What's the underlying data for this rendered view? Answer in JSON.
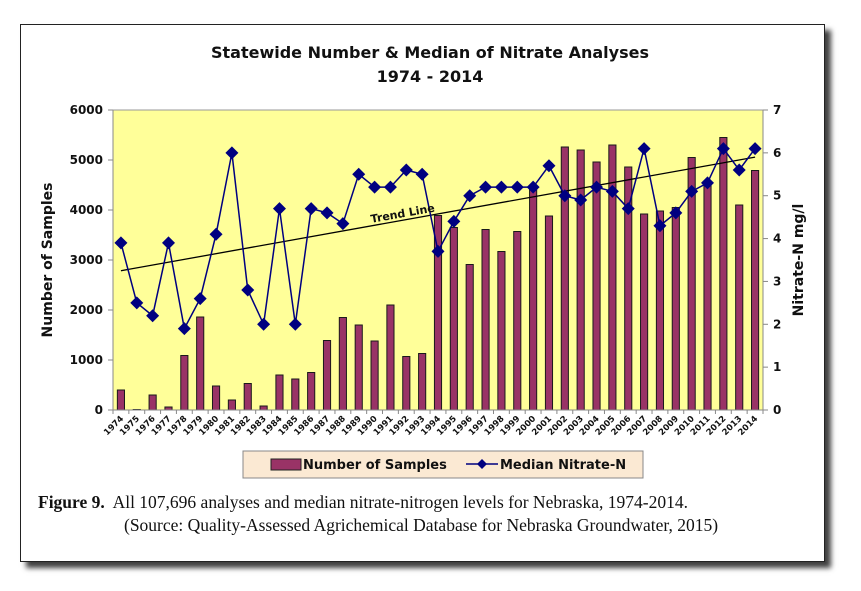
{
  "chart_data": {
    "type": "bar+line",
    "title": "Statewide Number & Median of Nitrate Analyses",
    "subtitle": "1974 - 2014",
    "categories": [
      "1974",
      "1975",
      "1976",
      "1977",
      "1978",
      "1979",
      "1980",
      "1981",
      "1982",
      "1983",
      "1984",
      "1985",
      "1986",
      "1987",
      "1988",
      "1989",
      "1990",
      "1991",
      "1992",
      "1993",
      "1994",
      "1995",
      "1996",
      "1997",
      "1998",
      "1999",
      "2000",
      "2001",
      "2002",
      "2003",
      "2004",
      "2005",
      "2006",
      "2007",
      "2008",
      "2009",
      "2010",
      "2011",
      "2012",
      "2013",
      "2014"
    ],
    "series": [
      {
        "name": "Number of Samples",
        "type": "bar",
        "axis": "left",
        "color": "#993366",
        "values": [
          400,
          10,
          300,
          60,
          1090,
          1860,
          480,
          200,
          530,
          80,
          700,
          620,
          750,
          1390,
          1850,
          1700,
          1380,
          2100,
          1070,
          1130,
          3890,
          3650,
          2910,
          3610,
          3170,
          3570,
          4450,
          3880,
          5260,
          5200,
          4960,
          5300,
          4860,
          3920,
          3980,
          4050,
          5050,
          4550,
          5450,
          4100,
          4790
        ]
      },
      {
        "name": "Median Nitrate-N",
        "type": "line",
        "axis": "right",
        "color": "#000080",
        "marker": "diamond",
        "values": [
          3.9,
          2.5,
          2.2,
          3.9,
          1.9,
          2.6,
          4.1,
          6.0,
          2.8,
          2.0,
          4.7,
          2.0,
          4.7,
          4.6,
          4.35,
          5.5,
          5.2,
          5.2,
          5.6,
          5.5,
          3.7,
          4.4,
          5.0,
          5.2,
          5.2,
          5.2,
          5.2,
          5.7,
          5.0,
          4.9,
          5.2,
          5.1,
          4.7,
          6.1,
          4.3,
          4.6,
          5.1,
          5.3,
          6.1,
          5.6,
          6.1
        ]
      },
      {
        "name": "Trend Line",
        "type": "line",
        "axis": "right",
        "color": "#000000",
        "x": [
          "1974",
          "2014"
        ],
        "values": [
          3.25,
          5.9
        ]
      }
    ],
    "annotations": [
      {
        "text": "Trend Line",
        "near": "1989-1993"
      }
    ],
    "ylabel": "Number of Samples",
    "ylim": [
      0,
      6000
    ],
    "yticks": [
      0,
      1000,
      2000,
      3000,
      4000,
      5000,
      6000
    ],
    "y2label": "Nitrate-N mg/l",
    "y2lim": [
      0,
      7
    ],
    "y2ticks": [
      0,
      1,
      2,
      3,
      4,
      5,
      6,
      7
    ],
    "xlabel": "",
    "grid": false,
    "plot_background": "#ffff99",
    "legend": {
      "placement": "bottom",
      "entries": [
        "Number of Samples",
        "Median Nitrate-N"
      ],
      "background": "#fff2cc"
    }
  },
  "caption": {
    "label": "Figure 9.",
    "text": "All 107,696 analyses and median nitrate-nitrogen levels for Nebraska, 1974-2014.",
    "source": "(Source: Quality-Assessed Agrichemical Database for Nebraska Groundwater, 2015)"
  }
}
